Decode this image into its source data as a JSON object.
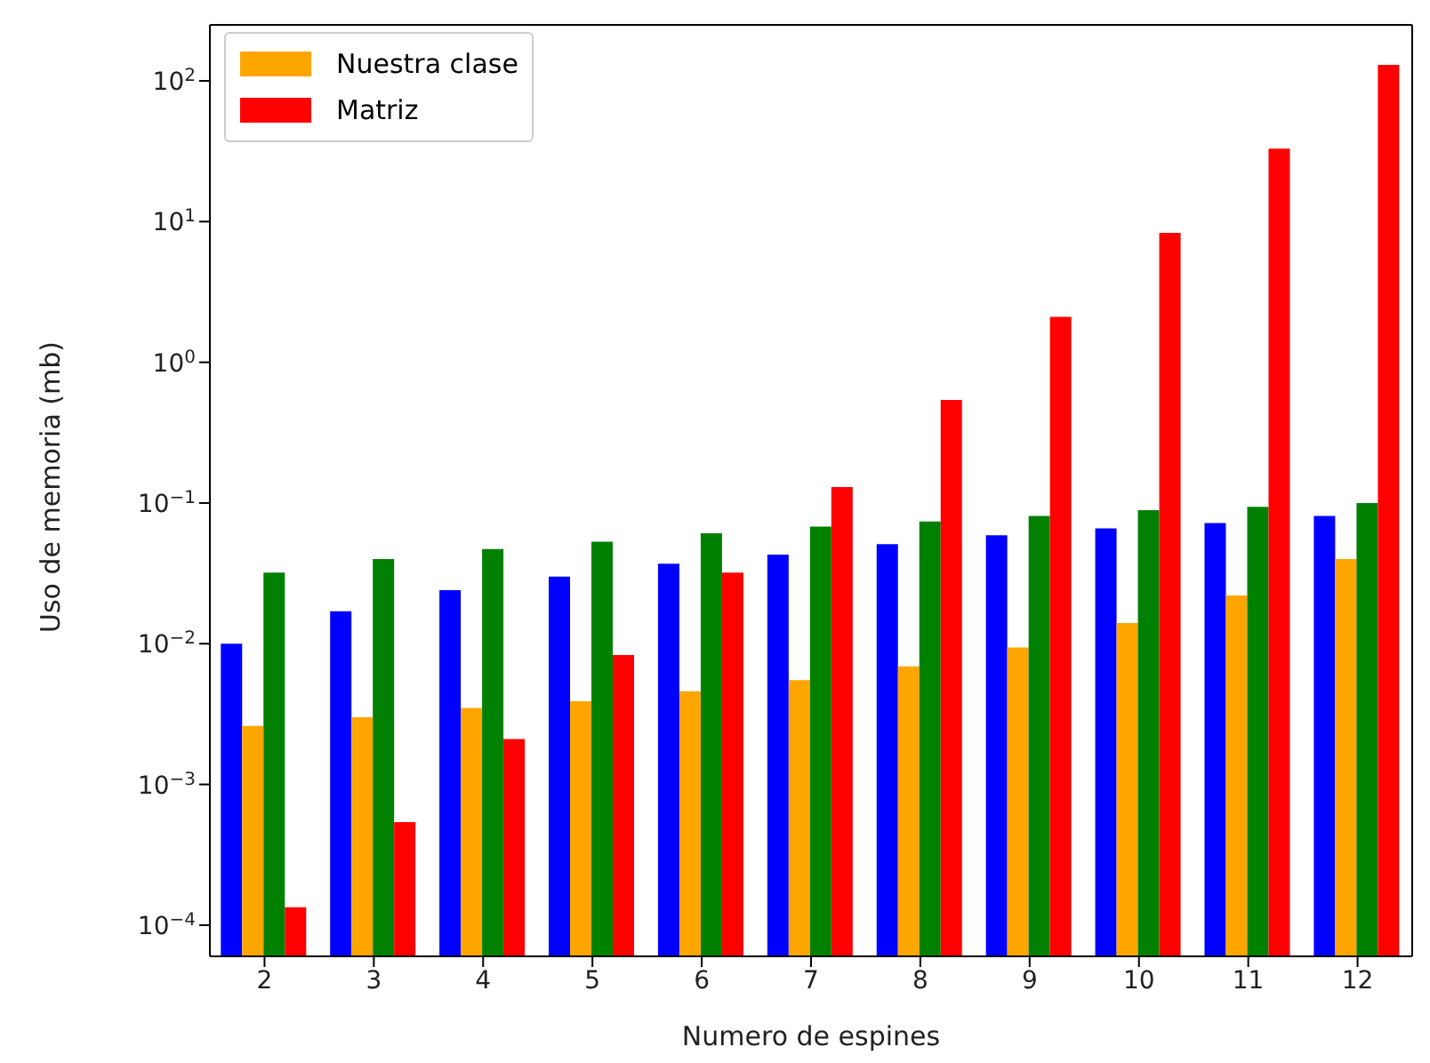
{
  "chart_data": {
    "type": "bar",
    "xlabel": "Numero de espines",
    "ylabel": "Uso de memoria (mb)",
    "categories": [
      "2",
      "3",
      "4",
      "5",
      "6",
      "7",
      "8",
      "9",
      "10",
      "11",
      "12"
    ],
    "log": true,
    "ylim": [
      6e-05,
      250
    ],
    "yticks": [
      {
        "value": 0.0001,
        "label": "10$^{−4}$"
      },
      {
        "value": 0.001,
        "label": "10$^{−3}$"
      },
      {
        "value": 0.01,
        "label": "10$^{−2}$"
      },
      {
        "value": 0.1,
        "label": "10$^{−1}$"
      },
      {
        "value": 1,
        "label": "10$^{0}$"
      },
      {
        "value": 10,
        "label": "10$^{1}$"
      },
      {
        "value": 100,
        "label": "10$^{2}$"
      }
    ],
    "grid": false,
    "legend": "top left",
    "series": [
      {
        "color": "#0000ff",
        "values": [
          0.01,
          0.017,
          0.024,
          0.03,
          0.037,
          0.043,
          0.051,
          0.059,
          0.066,
          0.072,
          0.081
        ]
      },
      {
        "name": "Nuestra clase",
        "color": "#ffa500",
        "values": [
          0.0026,
          0.003,
          0.0035,
          0.0039,
          0.0046,
          0.0055,
          0.0069,
          0.0094,
          0.014,
          0.022,
          0.04
        ]
      },
      {
        "color": "#008000",
        "values": [
          0.032,
          0.04,
          0.047,
          0.053,
          0.061,
          0.068,
          0.074,
          0.081,
          0.089,
          0.094,
          0.1
        ]
      },
      {
        "name": "Matriz",
        "color": "#ff0000",
        "values": [
          0.000134,
          0.00054,
          0.0021,
          0.0083,
          0.032,
          0.13,
          0.54,
          2.1,
          8.3,
          33,
          130
        ]
      }
    ]
  }
}
